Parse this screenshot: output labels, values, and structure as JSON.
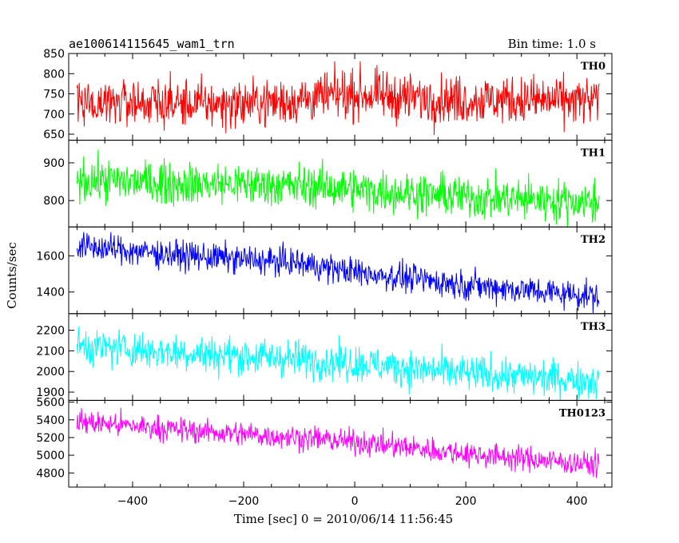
{
  "chart_data": {
    "type": "line",
    "title": "ae100614115645_wam1_trn",
    "subtitle": "Bin time: 1.0 s",
    "xlabel": "Time [sec] 0 = 2010/06/14 11:56:45",
    "ylabel": "Counts/sec",
    "xlim": [
      -515,
      463
    ],
    "xticks": [
      -400,
      -200,
      0,
      200,
      400
    ],
    "x_range": [
      -500,
      440
    ],
    "grid": false,
    "panels": [
      {
        "name": "TH0",
        "color": "#ff0000",
        "ylim": [
          635,
          850
        ],
        "yticks": [
          650,
          700,
          750,
          800,
          850
        ],
        "trend_start": 730,
        "trend_end": 730,
        "noise": 30,
        "anchors": [
          [
            -500,
            730
          ],
          [
            -400,
            730
          ],
          [
            -300,
            725
          ],
          [
            -200,
            725
          ],
          [
            -100,
            735
          ],
          [
            0,
            750
          ],
          [
            100,
            740
          ],
          [
            200,
            735
          ],
          [
            300,
            735
          ],
          [
            440,
            730
          ]
        ]
      },
      {
        "name": "TH1",
        "color": "#00ff00",
        "ylim": [
          730,
          960
        ],
        "yticks": [
          800,
          900
        ],
        "trend_start": 855,
        "trend_end": 795,
        "noise": 28,
        "anchors": [
          [
            -500,
            855
          ],
          [
            -300,
            845
          ],
          [
            -100,
            840
          ],
          [
            0,
            830
          ],
          [
            200,
            810
          ],
          [
            440,
            795
          ]
        ]
      },
      {
        "name": "TH2",
        "color": "#0000ff",
        "ylim": [
          1280,
          1760
        ],
        "yticks": [
          1400,
          1600
        ],
        "trend_start": 1650,
        "trend_end": 1380,
        "noise": 40,
        "anchors": [
          [
            -500,
            1655
          ],
          [
            -300,
            1600
          ],
          [
            -100,
            1560
          ],
          [
            0,
            1510
          ],
          [
            200,
            1440
          ],
          [
            440,
            1375
          ]
        ]
      },
      {
        "name": "TH3",
        "color": "#00ffff",
        "ylim": [
          1860,
          2280
        ],
        "yticks": [
          1900,
          2000,
          2100,
          2200
        ],
        "trend_start": 2120,
        "trend_end": 1960,
        "noise": 45,
        "anchors": [
          [
            -500,
            2125
          ],
          [
            -300,
            2090
          ],
          [
            -100,
            2060
          ],
          [
            0,
            2040
          ],
          [
            200,
            1990
          ],
          [
            440,
            1955
          ]
        ]
      },
      {
        "name": "TH0123",
        "color": "#ff00ff",
        "ylim": [
          4640,
          5620
        ],
        "yticks": [
          4800,
          5000,
          5200,
          5400,
          5600
        ],
        "trend_start": 5380,
        "trend_end": 4890,
        "noise": 70,
        "anchors": [
          [
            -500,
            5380
          ],
          [
            -300,
            5280
          ],
          [
            -100,
            5200
          ],
          [
            0,
            5150
          ],
          [
            200,
            5020
          ],
          [
            440,
            4890
          ]
        ]
      }
    ]
  }
}
